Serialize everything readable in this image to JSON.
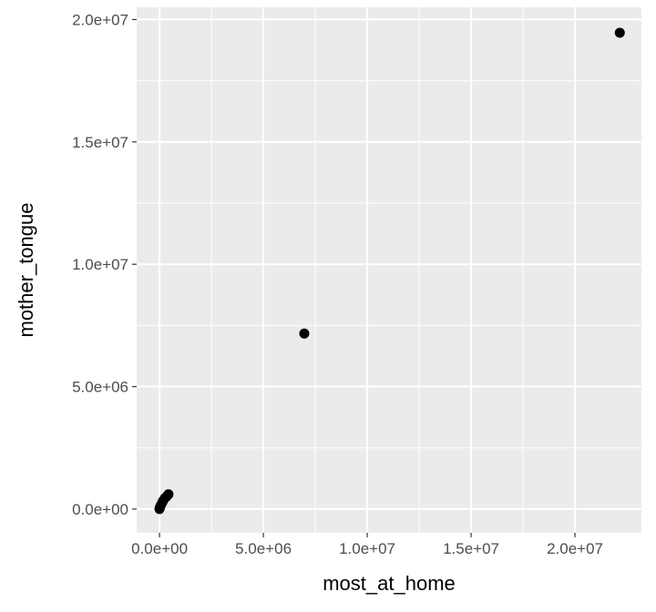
{
  "chart_data": {
    "type": "scatter",
    "title": "",
    "xlabel": "most_at_home",
    "ylabel": "mother_tongue",
    "xlim": [
      -1100000,
      23200000
    ],
    "ylim": [
      -970000,
      20500000
    ],
    "x_ticks": [
      0,
      5000000,
      10000000,
      15000000,
      20000000
    ],
    "x_tick_labels": [
      "0.0e+00",
      "5.0e+06",
      "1.0e+07",
      "1.5e+07",
      "2.0e+07"
    ],
    "y_ticks": [
      0,
      5000000,
      10000000,
      15000000,
      20000000
    ],
    "y_tick_labels": [
      "0.0e+00",
      "5.0e+06",
      "1.0e+07",
      "1.5e+07",
      "2.0e+07"
    ],
    "grid": true,
    "legend": "none",
    "colors": {
      "panel": "#ebebeb",
      "grid": "#ffffff",
      "point": "#000000"
    },
    "points": [
      {
        "x": 22160000,
        "y": 19460000
      },
      {
        "x": 6970000,
        "y": 7170000
      },
      {
        "x": 430000,
        "y": 600000
      },
      {
        "x": 340000,
        "y": 510000
      },
      {
        "x": 250000,
        "y": 440000
      },
      {
        "x": 170000,
        "y": 330000
      },
      {
        "x": 120000,
        "y": 250000
      },
      {
        "x": 60000,
        "y": 150000
      },
      {
        "x": 30000,
        "y": 90000
      },
      {
        "x": 10000,
        "y": 40000
      },
      {
        "x": 0,
        "y": 0
      }
    ]
  }
}
